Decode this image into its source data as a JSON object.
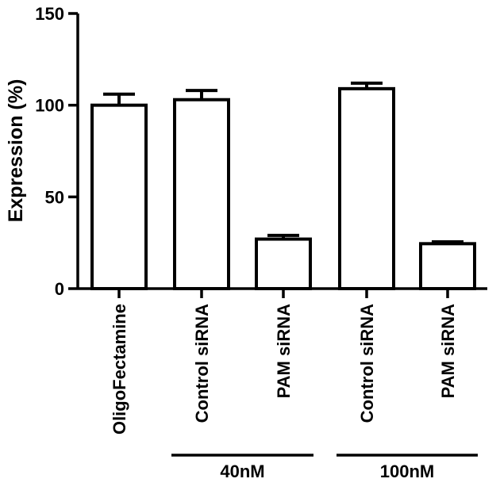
{
  "chart_data": {
    "type": "bar",
    "title": "",
    "xlabel": "",
    "ylabel": "Expression (%)",
    "ylim": [
      0,
      150
    ],
    "yticks": [
      0,
      50,
      100,
      150
    ],
    "grid": false,
    "categories": [
      "OligoFectamine",
      "Control siRNA",
      "PAM siRNA",
      "Control siRNA",
      "PAM siRNA"
    ],
    "values": [
      100,
      103,
      27,
      109,
      24.5
    ],
    "errors": [
      6,
      5,
      2,
      3,
      1
    ],
    "groups": [
      {
        "label": "40nM",
        "categories": [
          1,
          2
        ]
      },
      {
        "label": "100nM",
        "categories": [
          3,
          4
        ]
      }
    ],
    "colors": {
      "bar_fill": "#ffffff",
      "stroke": "#000000"
    }
  }
}
